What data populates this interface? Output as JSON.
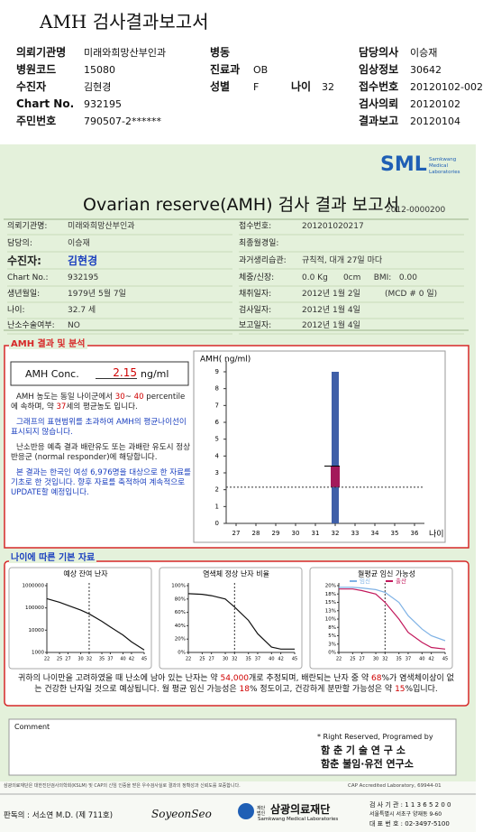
{
  "header": {
    "title": "AMH 검사결과보고서",
    "fields": {
      "institution": {
        "label": "의뢰기관명",
        "value": "미래와희망산부인과"
      },
      "ward": {
        "label": "병동"
      },
      "doctor": {
        "label": "담당의사",
        "value": "이승재"
      },
      "hospital_code": {
        "label": "병원코드",
        "value": "15080"
      },
      "department": {
        "label": "진료과",
        "value": "OB"
      },
      "clinical_info": {
        "label": "임상정보",
        "value": "30642"
      },
      "patient": {
        "label": "수진자",
        "value": "김현경"
      },
      "sex": {
        "label": "성별",
        "value": "F"
      },
      "age": {
        "label": "나이",
        "value": "32"
      },
      "receipt_no": {
        "label": "접수번호",
        "value": "20120102-002"
      },
      "chart_no": {
        "label": "Chart No.",
        "value": "932195"
      },
      "request_date": {
        "label": "검사의뢰",
        "value": "20120102"
      },
      "id_no": {
        "label": "주민번호",
        "value": "790507-2******"
      },
      "report_date": {
        "label": "결과보고",
        "value": "20120104"
      }
    }
  },
  "report": {
    "logo": "SML",
    "logo_sub": "Samkwang Medical Laboratories",
    "title": "Ovarian reserve(AMH) 검사 결과 보고서",
    "number": "2012-0000200",
    "left": [
      {
        "label": "의뢰기관명:",
        "value": "미래와희망산부인과"
      },
      {
        "label": "담당의:",
        "value": "이승재"
      },
      {
        "label": "수진자:",
        "value": "김현경"
      },
      {
        "label": "Chart No.:",
        "value": "932195"
      },
      {
        "label": "생년월일:",
        "value": "1979년 5월 7일"
      },
      {
        "label": "나이:",
        "value": "32.7 세"
      },
      {
        "label": "난소수술여부:",
        "value": "NO"
      }
    ],
    "right": [
      {
        "label": "접수번호:",
        "value": "201201020217"
      },
      {
        "label": "최종월경일:"
      },
      {
        "label": "과거생리습관:",
        "value": "규칙적, 대개 27일 마다"
      },
      {
        "label": "체중/신장:",
        "value": "0.0 Kg      0cm     BMI:   0.00"
      },
      {
        "label": "채취일자:",
        "value": "2012년 1월 2일",
        "note": "(MCD # 0 일)"
      },
      {
        "label": "검사일자:",
        "value": "2012년 1월 4일"
      },
      {
        "label": "보고일자:",
        "value": "2012년 1월 4일"
      }
    ]
  },
  "amh": {
    "heading": "AMH 결과 및 분석",
    "conc_label": "AMH Conc.",
    "conc_value": "2.15",
    "conc_unit": "ng/ml",
    "paragraphs": [
      {
        "color": "#222222",
        "segments": [
          {
            "text": "AMH 농도는 동일 나이군에서 "
          },
          {
            "text": "30",
            "color": "#d00000"
          },
          {
            "text": "~ "
          },
          {
            "text": "40",
            "color": "#d00000"
          },
          {
            "text": " percentile에 속하며, 약 "
          },
          {
            "text": "37",
            "color": "#d00000"
          },
          {
            "text": "세의 평균농도 입니다."
          }
        ]
      },
      {
        "color": "#1a3fbf",
        "segments": [
          {
            "text": "그래프의 표현범위를 초과하여 AMH의 평균나이선이 표시되지 않습니다."
          }
        ]
      },
      {
        "color": "#222222",
        "segments": [
          {
            "text": "난소반응 예측 결과 배란유도 또는 과배란 유도시 정상반응군 (normal responder)에 해당합니다."
          }
        ]
      },
      {
        "color": "#1a3fbf",
        "segments": [
          {
            "text": "본 결과는 한국인 여성 6,976명을 대상으로 한 자료를 기초로 한 것입니다. 향후 자료를 축적하여 계속적으로 UPDATE할 예정입니다."
          }
        ]
      }
    ]
  },
  "basic": {
    "heading": "나이에 따른 기본 자료",
    "summary": [
      {
        "text": "귀하의 나이만을 고려하였을 때 난소에 남아 있는 난자는 약 "
      },
      {
        "text": "54,000",
        "color": "#d00000"
      },
      {
        "text": "개로 추정되며, 배란되는 난자 중 약 "
      },
      {
        "text": "68",
        "color": "#d00000"
      },
      {
        "text": "%가 염색체이상이 없는 건강한 난자일 것으로 예상됩니다. 월 평균 임신 가능성은 "
      },
      {
        "text": "18",
        "color": "#d00000"
      },
      {
        "text": "% 정도이고, 건강하게 분만할 가능성은 약 "
      },
      {
        "text": "15",
        "color": "#d00000"
      },
      {
        "text": "%입니다."
      }
    ]
  },
  "comment": {
    "label": "Comment",
    "rights": "* Right Reserved, Programed by",
    "org1": "함 춘 기 술 연 구 소",
    "org2": "함춘 불임·유전 연구소"
  },
  "footer": {
    "notice": "삼광의료재단은 대한진단검사의학회(KSLM) 및 CAP의 신임 인증을 받은 우수검사실로 결과의 정확성과 신뢰도를 보증합니다.",
    "cap": "CAP Accredited Laboratory, 69944-01",
    "signer": "판독의 : 서소연 M.D. (제 711호)",
    "signature": "SoyeonSeo",
    "foundation_tag": "재단법인",
    "foundation": "삼광의료재단",
    "foundation_en": "Samkwang Medical Laboratories",
    "code": "검 사 기 관 : 1 1 3 6 5 2 0 0",
    "address": "서울특별시 서초구 양재동 9-60",
    "phone": "대 표 번 호 : 02-3497-5100"
  },
  "chart_data": [
    {
      "type": "range",
      "y_label": "AMH( ng/ml)",
      "x_label": "나이",
      "xlim": [
        26.5,
        36.5
      ],
      "xticks": [
        27,
        28,
        29,
        30,
        31,
        32,
        33,
        34,
        35,
        36
      ],
      "ylim": [
        0,
        9
      ],
      "yticks": [
        0,
        1,
        2,
        3,
        4,
        5,
        6,
        7,
        8,
        9
      ],
      "age": 32,
      "range": [
        0,
        9
      ],
      "range_color": "#3f5fa8",
      "box": [
        2.15,
        3.4
      ],
      "box_color": "#a3195b",
      "reference": 2.15
    },
    {
      "type": "line",
      "title": "예상 잔여 난자",
      "log_y": true,
      "x": [
        22,
        25,
        27,
        30,
        32,
        35,
        37,
        40,
        42,
        45
      ],
      "xlim": [
        22,
        45
      ],
      "xticks": [
        22,
        25,
        27,
        30,
        32,
        35,
        37,
        40,
        42,
        45
      ],
      "ylim": [
        1000,
        1000000
      ],
      "yticks": [
        1000,
        10000,
        100000,
        1000000
      ],
      "marker_x": 32,
      "series": [
        {
          "color": "#111111",
          "values": [
            260000,
            180000,
            130000,
            80000,
            54000,
            25000,
            14000,
            6000,
            3000,
            1300
          ]
        }
      ]
    },
    {
      "type": "line",
      "title": "염색체 정상 난자 비율",
      "x": [
        22,
        25,
        27,
        30,
        32,
        35,
        37,
        40,
        42,
        45
      ],
      "xlim": [
        22,
        45
      ],
      "xticks": [
        22,
        25,
        27,
        30,
        32,
        35,
        37,
        40,
        42,
        45
      ],
      "ylim": [
        0,
        100
      ],
      "yticks": [
        {
          "value": 0,
          "label": "0%"
        },
        {
          "value": 20,
          "label": "20%"
        },
        {
          "value": 40,
          "label": "40%"
        },
        {
          "value": 60,
          "label": "60%"
        },
        {
          "value": 80,
          "label": "80%"
        },
        {
          "value": 100,
          "label": "100%"
        }
      ],
      "marker_x": 32,
      "series": [
        {
          "color": "#111111",
          "values": [
            88,
            87,
            85,
            80,
            68,
            48,
            28,
            8,
            5,
            5
          ]
        }
      ]
    },
    {
      "type": "line",
      "title": "월평균 임신 가능성",
      "x": [
        22,
        25,
        27,
        30,
        32,
        35,
        37,
        40,
        42,
        45
      ],
      "xlim": [
        22,
        45
      ],
      "xticks": [
        22,
        25,
        27,
        30,
        32,
        35,
        37,
        40,
        42,
        45
      ],
      "ylim": [
        0,
        20
      ],
      "yticks": [
        {
          "value": 0,
          "label": "0%"
        },
        {
          "value": 2.5,
          "label": "3%"
        },
        {
          "value": 5,
          "label": "5%"
        },
        {
          "value": 7.5,
          "label": "8%"
        },
        {
          "value": 10,
          "label": "10%"
        },
        {
          "value": 12.5,
          "label": "13%"
        },
        {
          "value": 15,
          "label": "15%"
        },
        {
          "value": 17.5,
          "label": "18%"
        },
        {
          "value": 20,
          "label": "20%"
        }
      ],
      "marker_x": 32,
      "series": [
        {
          "name": "임신",
          "color": "#7fb2e5",
          "values": [
            19.5,
            19.5,
            19.3,
            18.8,
            18,
            15,
            11,
            7,
            5,
            3.5
          ]
        },
        {
          "name": "출산",
          "color": "#c2185b",
          "values": [
            19,
            19,
            18.5,
            17.5,
            15,
            10,
            6,
            3,
            1.5,
            1
          ]
        }
      ]
    }
  ]
}
